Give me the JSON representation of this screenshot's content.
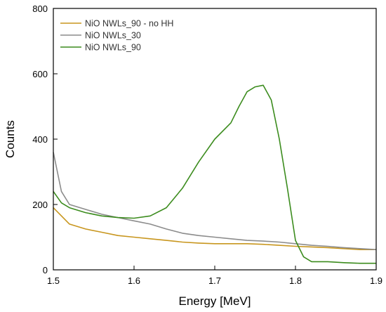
{
  "chart_data": {
    "type": "line",
    "xlabel": "Energy [MeV]",
    "ylabel": "Counts",
    "xlim": [
      1.5,
      1.9
    ],
    "ylim": [
      0,
      800
    ],
    "xticks": [
      "1.5",
      "1.6",
      "1.7",
      "1.8",
      "1.9"
    ],
    "yticks": [
      "0",
      "200",
      "400",
      "600",
      "800"
    ],
    "grid": false,
    "legend_position": "top-left",
    "series": [
      {
        "name": "NiO NWLs_90 - no HH",
        "color": "#c8961e",
        "x": [
          1.5,
          1.52,
          1.54,
          1.56,
          1.58,
          1.6,
          1.62,
          1.64,
          1.66,
          1.68,
          1.7,
          1.72,
          1.74,
          1.76,
          1.78,
          1.8,
          1.82,
          1.84,
          1.86,
          1.88,
          1.9
        ],
        "y": [
          190,
          140,
          125,
          115,
          105,
          100,
          95,
          90,
          85,
          82,
          80,
          80,
          80,
          78,
          75,
          72,
          70,
          68,
          65,
          62,
          62
        ]
      },
      {
        "name": "NiO NWLs_30",
        "color": "#8c8c8c",
        "x": [
          1.5,
          1.51,
          1.52,
          1.54,
          1.56,
          1.58,
          1.6,
          1.62,
          1.64,
          1.66,
          1.68,
          1.7,
          1.72,
          1.74,
          1.76,
          1.78,
          1.8,
          1.82,
          1.84,
          1.86,
          1.88,
          1.9
        ],
        "y": [
          360,
          240,
          200,
          185,
          170,
          160,
          150,
          140,
          125,
          112,
          105,
          100,
          95,
          90,
          88,
          85,
          80,
          75,
          72,
          68,
          65,
          62
        ]
      },
      {
        "name": "NiO NWLs_90",
        "color": "#3c8c1e",
        "x": [
          1.5,
          1.51,
          1.52,
          1.54,
          1.56,
          1.58,
          1.6,
          1.62,
          1.64,
          1.66,
          1.68,
          1.7,
          1.72,
          1.73,
          1.74,
          1.75,
          1.76,
          1.77,
          1.78,
          1.79,
          1.8,
          1.81,
          1.82,
          1.84,
          1.86,
          1.88,
          1.9
        ],
        "y": [
          240,
          205,
          190,
          175,
          165,
          160,
          158,
          165,
          190,
          250,
          330,
          400,
          450,
          500,
          545,
          560,
          565,
          520,
          400,
          250,
          90,
          40,
          25,
          25,
          22,
          20,
          20
        ]
      }
    ]
  }
}
